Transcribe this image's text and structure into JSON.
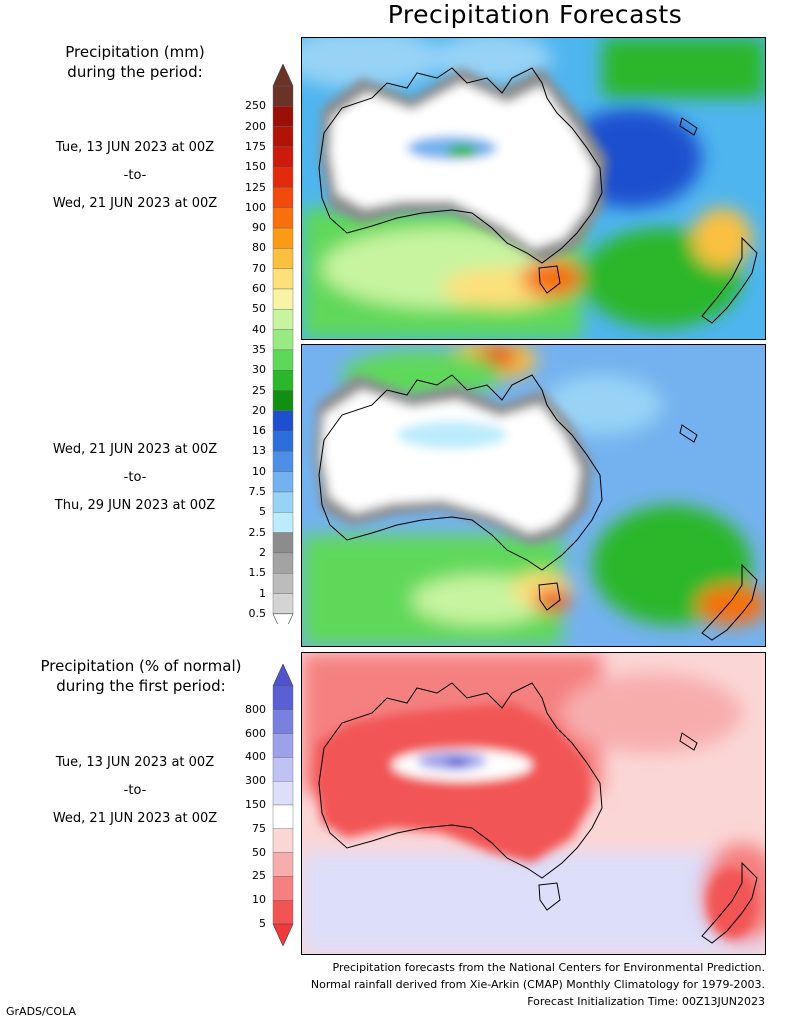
{
  "title": "Precipitation Forecasts",
  "mm_legend": {
    "heading_line1": "Precipitation (mm)",
    "heading_line2": "during the period:",
    "labels": [
      "250",
      "200",
      "175",
      "150",
      "125",
      "100",
      "90",
      "80",
      "70",
      "60",
      "50",
      "40",
      "35",
      "30",
      "25",
      "20",
      "16",
      "13",
      "10",
      "7.5",
      "5",
      "2.5",
      "2",
      "1.5",
      "1",
      "0.5"
    ],
    "colors": [
      "#6b3227",
      "#9a1008",
      "#b11308",
      "#cc1b0c",
      "#e22a0c",
      "#f04a0c",
      "#f7700c",
      "#fb9a14",
      "#fbc040",
      "#fde07a",
      "#f9f3a6",
      "#c8f4a0",
      "#98ea83",
      "#5ed85a",
      "#2bb72c",
      "#118f12",
      "#1d4fcf",
      "#2d6ddc",
      "#4d8fe7",
      "#74b2ef",
      "#98d3f6",
      "#bcecfb",
      "#8c8c8c",
      "#a3a3a3",
      "#bcbcbc",
      "#d4d4d4"
    ],
    "top_arrow_color": "#6b3227",
    "bottom_arrow_color": "#ffffff"
  },
  "pct_legend": {
    "heading_line1": "Precipitation (% of normal)",
    "heading_line2": "during the first period:",
    "labels": [
      "800",
      "600",
      "400",
      "300",
      "150",
      "75",
      "50",
      "25",
      "10",
      "5"
    ],
    "colors": [
      "#5a5fd3",
      "#7a80e0",
      "#9da1ea",
      "#bfc2f3",
      "#dcdefa",
      "#ffffff",
      "#fbd6d6",
      "#f8adad",
      "#f58080",
      "#f25454"
    ],
    "top_arrow_color": "#4f54cd",
    "bottom_arrow_color": "#ee3a3a"
  },
  "periods": [
    {
      "from": "Tue, 13 JUN 2023 at 00Z",
      "sep": "-to-",
      "to": "Wed, 21 JUN 2023 at 00Z"
    },
    {
      "from": "Wed, 21 JUN 2023 at 00Z",
      "sep": "-to-",
      "to": "Thu, 29 JUN 2023 at 00Z"
    },
    {
      "from": "Tue, 13 JUN 2023 at 00Z",
      "sep": "-to-",
      "to": "Wed, 21 JUN 2023 at 00Z"
    }
  ],
  "footnotes": {
    "line1": "Precipitation forecasts from the National Centers for Environmental Prediction.",
    "line2": "Normal rainfall derived from Xie-Arkin (CMAP) Monthly Climatology for 1979-2003.",
    "line3": "Forecast Initialization Time: 00Z13JUN2023"
  },
  "credit": "GrADS/COLA"
}
